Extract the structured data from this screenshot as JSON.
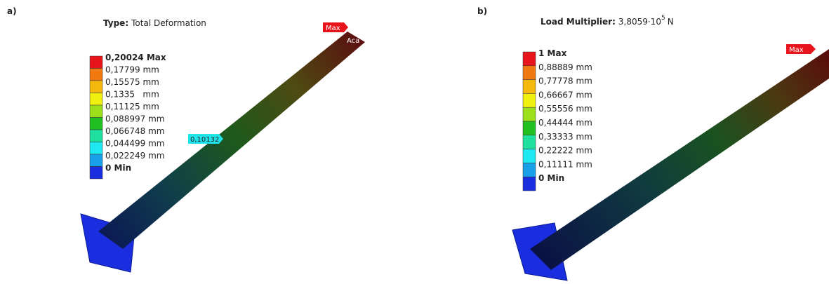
{
  "panels": [
    {
      "label": "a)",
      "title_bold": "Type:",
      "title": "Total Deformation",
      "legend": [
        "0,20024 Max",
        "0,17799 mm",
        "0,15575 mm",
        "0,1335   mm",
        "0,11125 mm",
        "0,088997 mm",
        "0,066748 mm",
        "0,044499 mm",
        "0,022249 mm",
        "0 Min"
      ],
      "callouts": [
        "Max",
        "Aca",
        "0,10132"
      ]
    },
    {
      "label": "b)",
      "title_bold": "Load Multiplier:",
      "title": "3,8059·10",
      "title_sup": "5",
      "title_unit": "N",
      "legend": [
        "1 Max",
        "0,88889 mm",
        "0,77778 mm",
        "0,66667 mm",
        "0,55556 mm",
        "0,44444 mm",
        "0,33333 mm",
        "0,22222 mm",
        "0,11111 mm",
        "0 Min"
      ],
      "callouts": [
        "Max"
      ]
    }
  ]
}
